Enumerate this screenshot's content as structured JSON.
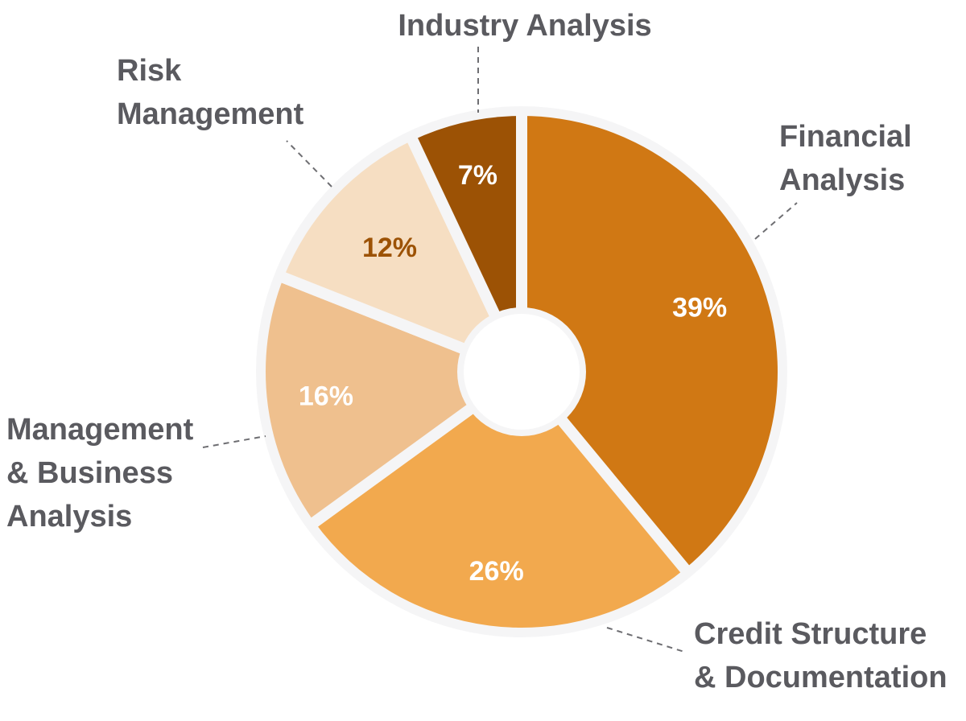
{
  "chart_data": {
    "type": "pie",
    "title": "",
    "legend": "none",
    "slices": [
      {
        "label_lines": [
          "Financial",
          "Analysis"
        ],
        "value": 39,
        "value_label": "39%",
        "color": "#d07814",
        "text_color": "#ffffff"
      },
      {
        "label_lines": [
          "Credit Structure",
          "& Documentation"
        ],
        "value": 26,
        "value_label": "26%",
        "color": "#f2a94e",
        "text_color": "#ffffff"
      },
      {
        "label_lines": [
          "Management",
          "& Business",
          "Analysis"
        ],
        "value": 16,
        "value_label": "16%",
        "color": "#efc08e",
        "text_color": "#ffffff"
      },
      {
        "label_lines": [
          "Risk",
          "Management"
        ],
        "value": 12,
        "value_label": "12%",
        "color": "#f6dec2",
        "text_color": "#9c5205"
      },
      {
        "label_lines": [
          "Industry Analysis"
        ],
        "value": 7,
        "value_label": "7%",
        "color": "#9c5205",
        "text_color": "#ffffff"
      }
    ]
  }
}
